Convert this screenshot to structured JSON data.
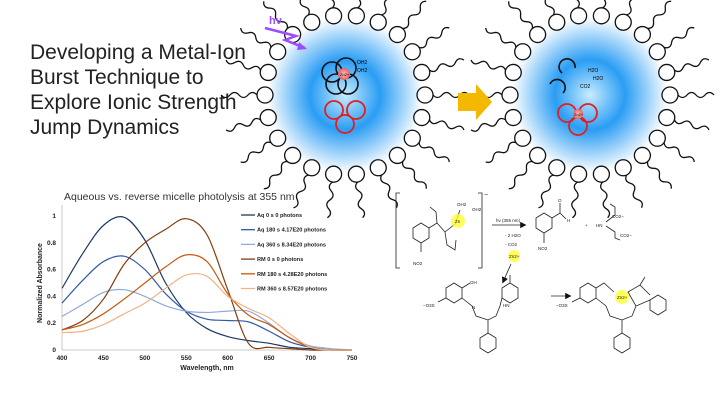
{
  "slide": {
    "title_lines": [
      "Developing a Metal-Ion",
      "Burst Technique to",
      "Explore Ionic Strength",
      "Jump Dynamics"
    ]
  },
  "micelle_left": {
    "light_label": "hν",
    "ligand_labels": [
      "OH2",
      "OH2"
    ],
    "ion_label": "Zn2+"
  },
  "micelle_right": {
    "molecule_labels": [
      "H2O",
      "H2O",
      "CO2"
    ],
    "ion_label": "Zn2+"
  },
  "colors": {
    "micelle_core": "#2a9df4",
    "light": "#9b4dff",
    "arrow": "#f5b800",
    "chelator": "#e02020",
    "ion": "#f08080",
    "zinc_highlight": "#ffff33"
  },
  "scheme": {
    "reaction_condition": "hv (355 nm)",
    "byproducts": [
      "- 2 H2O",
      "- CO2"
    ],
    "released_ion": "Zn2+",
    "charge": "−",
    "labels": {
      "oh2_a": "OH2",
      "oh2_b": "OH2",
      "zn_cage": "Zn",
      "no2_a": "NO2",
      "no2_b": "NO2",
      "aldehyde_h": "H",
      "aldehyde_o": "O",
      "plus": "+",
      "hn": "HN",
      "co2_a": "CO2−",
      "co2_b": "CO2−",
      "oh": "OH",
      "so3_a": "−O3S",
      "so3_b": "−O3S",
      "hn2": "HN",
      "n": "N",
      "zn_complex": "Zn2+"
    }
  },
  "chart_data": {
    "type": "line",
    "title": "Aqueous vs. reverse micelle photolysis at 355 nm",
    "xlabel": "Wavelength, nm",
    "ylabel": "Normalized Absorbance",
    "xlim": [
      400,
      750
    ],
    "ylim": [
      0,
      1.05
    ],
    "xticks": [
      "400",
      "450",
      "500",
      "550",
      "600",
      "650",
      "700",
      "750"
    ],
    "yticks": [
      "0",
      "0.2",
      "0.4",
      "0.6",
      "0.8",
      "1"
    ],
    "grid": false,
    "legend": "right",
    "x": [
      400,
      425,
      450,
      475,
      500,
      525,
      550,
      575,
      600,
      625,
      650,
      675,
      700,
      725,
      750
    ],
    "series": [
      {
        "name": "Aq 0 s 0 photons",
        "color": "#1f3864",
        "values": [
          0.46,
          0.72,
          0.93,
          0.99,
          0.82,
          0.5,
          0.28,
          0.16,
          0.1,
          0.07,
          0.05,
          0.02,
          0.01,
          0.0,
          0.0
        ]
      },
      {
        "name": "Aq 180 s 4.17E20 photons",
        "color": "#2e5aa8",
        "values": [
          0.35,
          0.52,
          0.66,
          0.7,
          0.6,
          0.42,
          0.29,
          0.23,
          0.22,
          0.21,
          0.14,
          0.06,
          0.02,
          0.0,
          0.0
        ]
      },
      {
        "name": "Aq 360 s 8.34E20 photons",
        "color": "#8faadc",
        "values": [
          0.25,
          0.34,
          0.43,
          0.45,
          0.4,
          0.33,
          0.29,
          0.28,
          0.29,
          0.29,
          0.2,
          0.09,
          0.03,
          0.01,
          0.0
        ]
      },
      {
        "name": "RM 0 s 0 photons",
        "color": "#843c0c",
        "values": [
          0.15,
          0.22,
          0.38,
          0.64,
          0.8,
          0.9,
          0.98,
          0.86,
          0.45,
          0.05,
          0.02,
          0.01,
          0.0,
          0.0,
          0.0
        ]
      },
      {
        "name": "RM 180 s 4.28E20 photons",
        "color": "#c55a11",
        "values": [
          0.15,
          0.19,
          0.27,
          0.38,
          0.5,
          0.62,
          0.71,
          0.66,
          0.42,
          0.26,
          0.19,
          0.09,
          0.02,
          0.0,
          0.0
        ]
      },
      {
        "name": "RM 360 s 8.57E20 photons",
        "color": "#f4b183",
        "values": [
          0.13,
          0.14,
          0.19,
          0.27,
          0.35,
          0.46,
          0.56,
          0.55,
          0.4,
          0.31,
          0.24,
          0.12,
          0.02,
          0.0,
          0.0
        ]
      }
    ]
  }
}
